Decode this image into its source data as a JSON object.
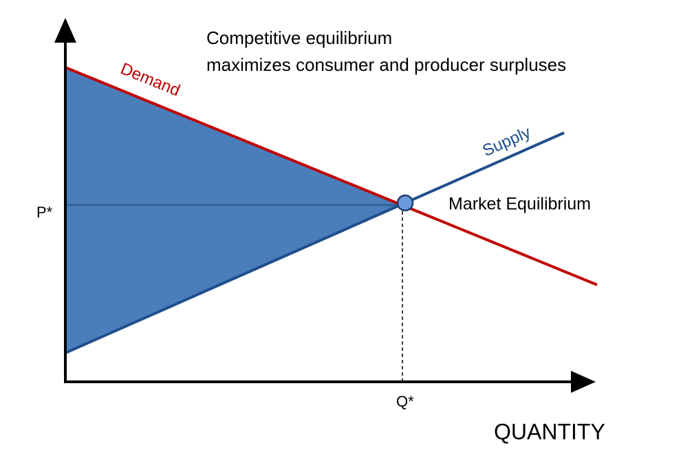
{
  "title": {
    "line1": "Competitive equilibrium",
    "line2": "maximizes consumer and producer surpluses"
  },
  "labels": {
    "demand": "Demand",
    "supply": "Supply",
    "equilibrium": "Market Equilibrium",
    "price": "P*",
    "quantity": "Q*",
    "x_axis": "QUANTITY"
  }
}
